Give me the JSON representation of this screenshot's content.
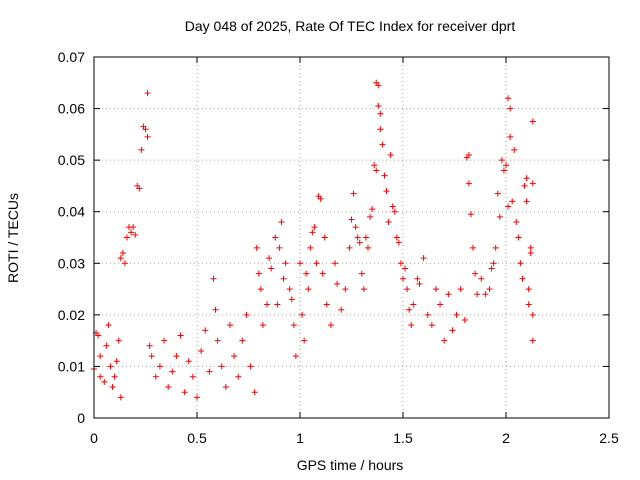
{
  "chart_data": {
    "type": "scatter",
    "title": "Day 048 of 2025, Rate Of TEC Index for receiver dprt",
    "xlabel": "GPS time / hours",
    "ylabel": "ROTI / TECUs",
    "xlim": [
      0,
      2.5
    ],
    "ylim": [
      0,
      0.07
    ],
    "xticks": [
      0,
      0.5,
      1,
      1.5,
      2,
      2.5
    ],
    "xtick_labels": [
      "0",
      "0.5",
      "1",
      "1.5",
      "2",
      "2.5"
    ],
    "yticks": [
      0,
      0.01,
      0.02,
      0.03,
      0.04,
      0.05,
      0.06,
      0.07
    ],
    "ytick_labels": [
      "0",
      "0.01",
      "0.02",
      "0.03",
      "0.04",
      "0.05",
      "0.06",
      "0.07"
    ],
    "grid": true,
    "marker": "plus",
    "color": "#ff0000",
    "series": [
      {
        "values": [
          [
            0.0,
            0.0095
          ],
          [
            0.01,
            0.0165
          ],
          [
            0.02,
            0.016
          ],
          [
            0.03,
            0.012
          ],
          [
            0.03,
            0.008
          ],
          [
            0.05,
            0.007
          ],
          [
            0.06,
            0.014
          ],
          [
            0.07,
            0.018
          ],
          [
            0.08,
            0.01
          ],
          [
            0.09,
            0.006
          ],
          [
            0.1,
            0.008
          ],
          [
            0.11,
            0.011
          ],
          [
            0.12,
            0.015
          ],
          [
            0.13,
            0.004
          ],
          [
            0.13,
            0.031
          ],
          [
            0.14,
            0.032
          ],
          [
            0.15,
            0.03
          ],
          [
            0.16,
            0.035
          ],
          [
            0.17,
            0.037
          ],
          [
            0.18,
            0.036
          ],
          [
            0.19,
            0.037
          ],
          [
            0.2,
            0.0355
          ],
          [
            0.21,
            0.045
          ],
          [
            0.22,
            0.0445
          ],
          [
            0.23,
            0.052
          ],
          [
            0.24,
            0.0565
          ],
          [
            0.25,
            0.056
          ],
          [
            0.26,
            0.0545
          ],
          [
            0.26,
            0.063
          ],
          [
            0.27,
            0.014
          ],
          [
            0.28,
            0.012
          ],
          [
            0.3,
            0.008
          ],
          [
            0.32,
            0.01
          ],
          [
            0.34,
            0.015
          ],
          [
            0.36,
            0.006
          ],
          [
            0.38,
            0.009
          ],
          [
            0.4,
            0.012
          ],
          [
            0.42,
            0.016
          ],
          [
            0.44,
            0.005
          ],
          [
            0.46,
            0.011
          ],
          [
            0.48,
            0.008
          ],
          [
            0.5,
            0.004
          ],
          [
            0.52,
            0.013
          ],
          [
            0.54,
            0.017
          ],
          [
            0.56,
            0.009
          ],
          [
            0.58,
            0.027
          ],
          [
            0.59,
            0.021
          ],
          [
            0.6,
            0.015
          ],
          [
            0.62,
            0.01
          ],
          [
            0.64,
            0.006
          ],
          [
            0.66,
            0.018
          ],
          [
            0.68,
            0.012
          ],
          [
            0.7,
            0.008
          ],
          [
            0.72,
            0.015
          ],
          [
            0.74,
            0.02
          ],
          [
            0.76,
            0.01
          ],
          [
            0.78,
            0.005
          ],
          [
            0.79,
            0.033
          ],
          [
            0.8,
            0.028
          ],
          [
            0.81,
            0.025
          ],
          [
            0.82,
            0.018
          ],
          [
            0.84,
            0.022
          ],
          [
            0.85,
            0.031
          ],
          [
            0.86,
            0.029
          ],
          [
            0.88,
            0.035
          ],
          [
            0.89,
            0.022
          ],
          [
            0.9,
            0.033
          ],
          [
            0.91,
            0.038
          ],
          [
            0.92,
            0.027
          ],
          [
            0.93,
            0.03
          ],
          [
            0.95,
            0.025
          ],
          [
            0.96,
            0.023
          ],
          [
            0.97,
            0.018
          ],
          [
            0.98,
            0.012
          ],
          [
            1.0,
            0.03
          ],
          [
            1.01,
            0.02
          ],
          [
            1.02,
            0.015
          ],
          [
            1.03,
            0.028
          ],
          [
            1.04,
            0.025
          ],
          [
            1.05,
            0.033
          ],
          [
            1.06,
            0.036
          ],
          [
            1.07,
            0.037
          ],
          [
            1.08,
            0.03
          ],
          [
            1.09,
            0.043
          ],
          [
            1.1,
            0.0425
          ],
          [
            1.11,
            0.028
          ],
          [
            1.12,
            0.035
          ],
          [
            1.13,
            0.022
          ],
          [
            1.15,
            0.018
          ],
          [
            1.17,
            0.03
          ],
          [
            1.18,
            0.026
          ],
          [
            1.2,
            0.021
          ],
          [
            1.22,
            0.025
          ],
          [
            1.24,
            0.033
          ],
          [
            1.25,
            0.0385
          ],
          [
            1.26,
            0.0435
          ],
          [
            1.27,
            0.037
          ],
          [
            1.28,
            0.035
          ],
          [
            1.29,
            0.034
          ],
          [
            1.3,
            0.028
          ],
          [
            1.31,
            0.025
          ],
          [
            1.32,
            0.035
          ],
          [
            1.33,
            0.033
          ],
          [
            1.34,
            0.039
          ],
          [
            1.35,
            0.0405
          ],
          [
            1.36,
            0.049
          ],
          [
            1.37,
            0.048
          ],
          [
            1.37,
            0.065
          ],
          [
            1.38,
            0.0645
          ],
          [
            1.38,
            0.0605
          ],
          [
            1.39,
            0.059
          ],
          [
            1.39,
            0.056
          ],
          [
            1.4,
            0.053
          ],
          [
            1.41,
            0.047
          ],
          [
            1.42,
            0.044
          ],
          [
            1.43,
            0.038
          ],
          [
            1.44,
            0.051
          ],
          [
            1.45,
            0.041
          ],
          [
            1.46,
            0.04
          ],
          [
            1.47,
            0.035
          ],
          [
            1.48,
            0.034
          ],
          [
            1.49,
            0.03
          ],
          [
            1.5,
            0.027
          ],
          [
            1.51,
            0.029
          ],
          [
            1.52,
            0.025
          ],
          [
            1.53,
            0.021
          ],
          [
            1.54,
            0.018
          ],
          [
            1.55,
            0.022
          ],
          [
            1.57,
            0.027
          ],
          [
            1.58,
            0.026
          ],
          [
            1.6,
            0.031
          ],
          [
            1.62,
            0.02
          ],
          [
            1.64,
            0.018
          ],
          [
            1.66,
            0.025
          ],
          [
            1.68,
            0.022
          ],
          [
            1.7,
            0.015
          ],
          [
            1.72,
            0.024
          ],
          [
            1.74,
            0.017
          ],
          [
            1.76,
            0.02
          ],
          [
            1.78,
            0.025
          ],
          [
            1.8,
            0.019
          ],
          [
            1.81,
            0.0505
          ],
          [
            1.82,
            0.051
          ],
          [
            1.82,
            0.0455
          ],
          [
            1.83,
            0.0395
          ],
          [
            1.84,
            0.033
          ],
          [
            1.85,
            0.028
          ],
          [
            1.86,
            0.024
          ],
          [
            1.88,
            0.027
          ],
          [
            1.9,
            0.024
          ],
          [
            1.92,
            0.025
          ],
          [
            1.93,
            0.029
          ],
          [
            1.94,
            0.03
          ],
          [
            1.95,
            0.033
          ],
          [
            1.96,
            0.0435
          ],
          [
            1.97,
            0.039
          ],
          [
            1.98,
            0.05
          ],
          [
            1.99,
            0.048
          ],
          [
            2.0,
            0.049
          ],
          [
            2.01,
            0.041
          ],
          [
            2.01,
            0.062
          ],
          [
            2.02,
            0.06
          ],
          [
            2.02,
            0.0545
          ],
          [
            2.03,
            0.042
          ],
          [
            2.04,
            0.052
          ],
          [
            2.05,
            0.038
          ],
          [
            2.06,
            0.035
          ],
          [
            2.07,
            0.03
          ],
          [
            2.08,
            0.027
          ],
          [
            2.09,
            0.045
          ],
          [
            2.1,
            0.0465
          ],
          [
            2.1,
            0.042
          ],
          [
            2.11,
            0.025
          ],
          [
            2.11,
            0.022
          ],
          [
            2.12,
            0.033
          ],
          [
            2.12,
            0.032
          ],
          [
            2.13,
            0.0575
          ],
          [
            2.13,
            0.0455
          ],
          [
            2.13,
            0.02
          ],
          [
            2.13,
            0.015
          ]
        ]
      }
    ]
  }
}
